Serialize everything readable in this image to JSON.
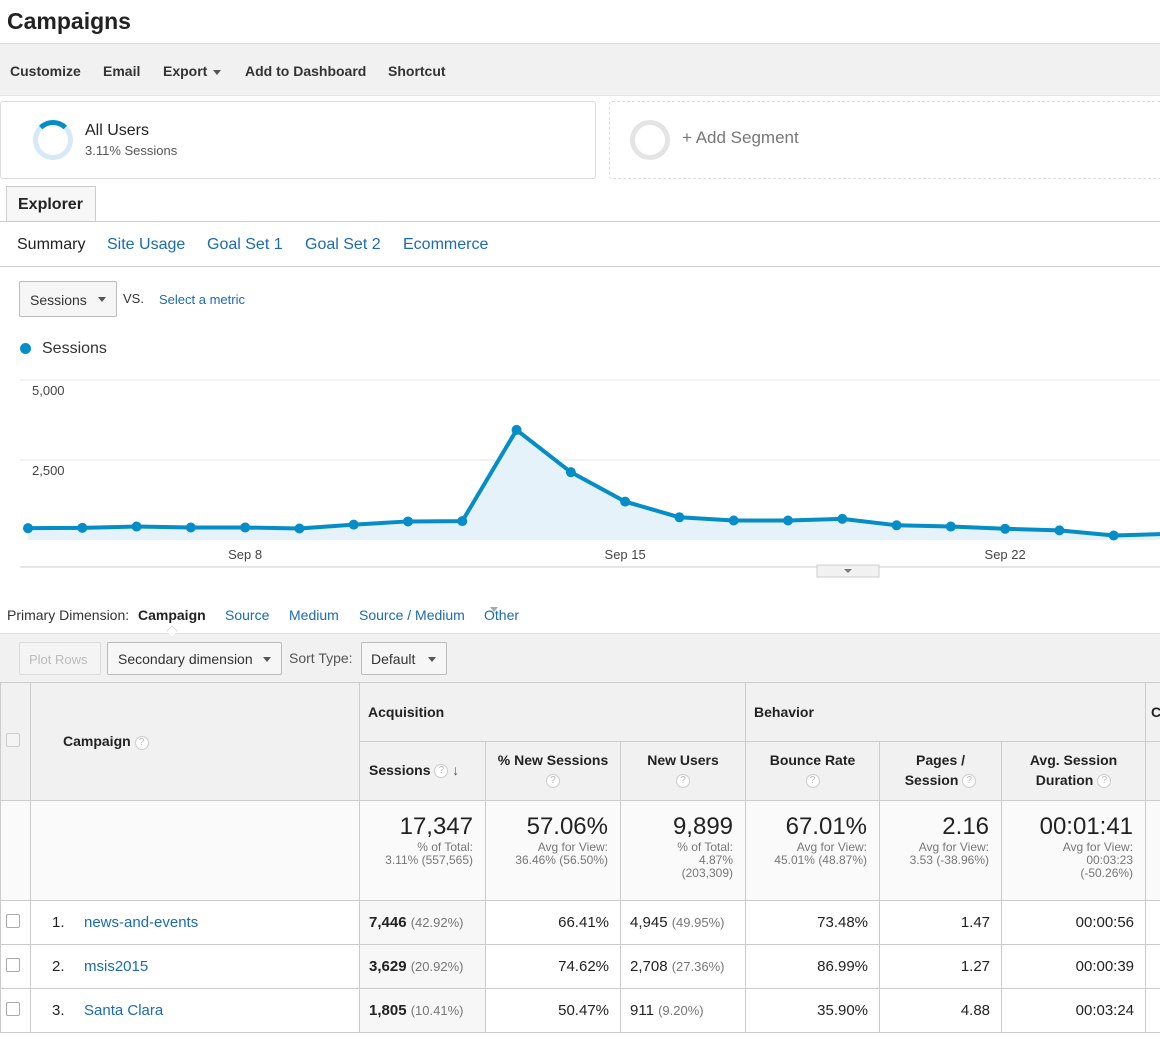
{
  "page_title": "Campaigns",
  "toolbar": {
    "customize": "Customize",
    "email": "Email",
    "export": "Export",
    "add_to_dashboard": "Add to Dashboard",
    "shortcut": "Shortcut"
  },
  "segments": {
    "all_users": {
      "name": "All Users",
      "detail": "3.11% Sessions"
    },
    "add_label": "+ Add Segment"
  },
  "explorer_tab": "Explorer",
  "subtabs": [
    "Summary",
    "Site Usage",
    "Goal Set 1",
    "Goal Set 2",
    "Ecommerce"
  ],
  "metric_picker": {
    "selected": "Sessions",
    "vs": "VS.",
    "select_metric": "Select a metric"
  },
  "chart_data": {
    "type": "area",
    "legend": [
      "Sessions"
    ],
    "series": [
      {
        "name": "Sessions",
        "color": "#058dc7",
        "values": [
          370,
          380,
          420,
          390,
          390,
          360,
          480,
          580,
          590,
          3440,
          2120,
          1200,
          710,
          610,
          610,
          660,
          460,
          420,
          350,
          300,
          140,
          190
        ]
      }
    ],
    "x_ticks": [
      {
        "label": "Sep 8",
        "index": 4
      },
      {
        "label": "Sep 15",
        "index": 11
      },
      {
        "label": "Sep 22",
        "index": 18
      }
    ],
    "y_ticks": [
      "5,000",
      "2,500"
    ],
    "ylim": [
      0,
      5000
    ],
    "grid": true
  },
  "primary_dimension": {
    "label": "Primary Dimension:",
    "selected": "Campaign",
    "options": [
      "Source",
      "Medium",
      "Source / Medium"
    ],
    "other": "Other"
  },
  "filters": {
    "plot_rows": "Plot Rows",
    "secondary_dimension": "Secondary dimension",
    "sort_type_label": "Sort Type:",
    "sort_type_value": "Default"
  },
  "table": {
    "dim_header": "Campaign",
    "groups": {
      "acquisition": "Acquisition",
      "behavior": "Behavior",
      "conversions": "C"
    },
    "columns": {
      "sessions": "Sessions",
      "new_sessions": "% New Sessions",
      "new_users": "New Users",
      "bounce_rate": "Bounce Rate",
      "pages_session": "Pages /",
      "pages_session_2": "Session",
      "avg_duration": "Avg. Session",
      "avg_duration_2": "Duration"
    },
    "totals": {
      "sessions": "17,347",
      "sessions_sub1": "% of Total:",
      "sessions_sub2": "3.11% (557,565)",
      "new_sessions": "57.06%",
      "new_sessions_sub1": "Avg for View:",
      "new_sessions_sub2": "36.46% (56.50%)",
      "new_users": "9,899",
      "new_users_sub1": "% of Total:",
      "new_users_sub2": "4.87%",
      "new_users_sub3": "(203,309)",
      "bounce_rate": "67.01%",
      "bounce_rate_sub1": "Avg for View:",
      "bounce_rate_sub2": "45.01% (48.87%)",
      "pages_session": "2.16",
      "pages_session_sub1": "Avg for View:",
      "pages_session_sub2": "3.53 (-38.96%)",
      "avg_duration": "00:01:41",
      "avg_duration_sub1": "Avg for View:",
      "avg_duration_sub2": "00:03:23",
      "avg_duration_sub3": "(-50.26%)"
    },
    "rows": [
      {
        "num": "1.",
        "campaign": "news-and-events",
        "sessions": "7,446",
        "sessions_pct": "(42.92%)",
        "new_sessions": "66.41%",
        "new_users": "4,945",
        "new_users_pct": "(49.95%)",
        "bounce_rate": "73.48%",
        "pages_session": "1.47",
        "avg_duration": "00:00:56"
      },
      {
        "num": "2.",
        "campaign": "msis2015",
        "sessions": "3,629",
        "sessions_pct": "(20.92%)",
        "new_sessions": "74.62%",
        "new_users": "2,708",
        "new_users_pct": "(27.36%)",
        "bounce_rate": "86.99%",
        "pages_session": "1.27",
        "avg_duration": "00:00:39"
      },
      {
        "num": "3.",
        "campaign": "Santa Clara",
        "sessions": "1,805",
        "sessions_pct": "(10.41%)",
        "new_sessions": "50.47%",
        "new_users": "911",
        "new_users_pct": "(9.20%)",
        "bounce_rate": "35.90%",
        "pages_session": "4.88",
        "avg_duration": "00:03:24"
      }
    ]
  }
}
